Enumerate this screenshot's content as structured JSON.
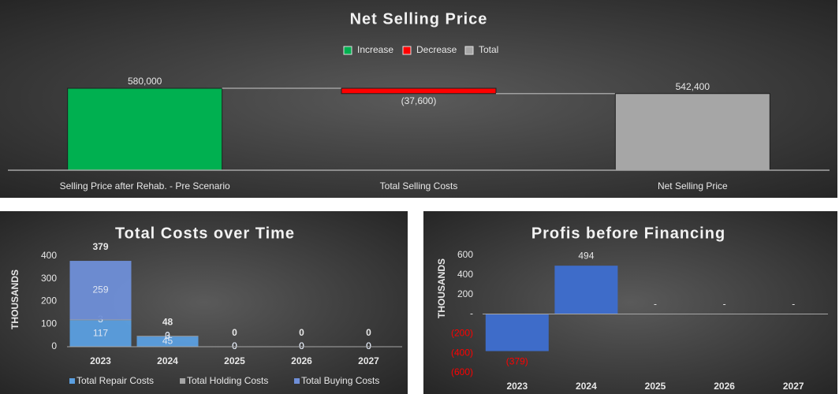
{
  "chart_data": [
    {
      "type": "waterfall",
      "title": "Net Selling Price",
      "legend": [
        {
          "name": "Increase",
          "color": "#00b050"
        },
        {
          "name": "Decrease",
          "color": "#ff0000"
        },
        {
          "name": "Total",
          "color": "#a6a6a6"
        }
      ],
      "categories": [
        "Selling Price after Rehab. - Pre Scenario",
        "Total Selling Costs",
        "Net Selling Price"
      ],
      "values": [
        580000,
        -37600,
        542400
      ],
      "value_labels": [
        "580,000",
        "(37,600)",
        "542,400"
      ],
      "bar_kinds": [
        0,
        1,
        2
      ],
      "ylim": [
        0,
        700000
      ]
    },
    {
      "type": "stacked_bar",
      "title": "Total Costs over Time",
      "y_label": "THOUSANDS",
      "categories": [
        "2023",
        "2024",
        "2025",
        "2026",
        "2027"
      ],
      "series": [
        {
          "name": "Total Repair Costs",
          "color": "#5b9fe0",
          "values": [
            117,
            45,
            0,
            0,
            0
          ]
        },
        {
          "name": "Total Holding Costs",
          "color": "#a5a5a5",
          "values": [
            3,
            3,
            0,
            0,
            0
          ]
        },
        {
          "name": "Total Buying Costs",
          "color": "#6f8fd8",
          "values": [
            259,
            0,
            0,
            0,
            0
          ]
        }
      ],
      "totals": [
        379,
        48,
        0,
        0,
        0
      ],
      "ylim": [
        0,
        400
      ],
      "yticks": [
        0,
        100,
        200,
        300,
        400
      ]
    },
    {
      "type": "bar",
      "title": "Profis before Financing",
      "y_label": "THOUSANDS",
      "categories": [
        "2023",
        "2024",
        "2025",
        "2026",
        "2027"
      ],
      "values": [
        -379,
        494,
        0,
        0,
        0
      ],
      "value_labels": [
        "(379)",
        "494",
        "-",
        "-",
        "-"
      ],
      "color": "#3e6cc9",
      "negative_color": "#ff0000",
      "ylim": [
        -600,
        600
      ],
      "yticks": [
        {
          "value": -600,
          "label": "(600)"
        },
        {
          "value": -400,
          "label": "(400)"
        },
        {
          "value": -200,
          "label": "(200)"
        },
        {
          "value": 0,
          "label": "-"
        },
        {
          "value": 200,
          "label": "200"
        },
        {
          "value": 400,
          "label": "400"
        },
        {
          "value": 600,
          "label": "600"
        }
      ]
    }
  ]
}
